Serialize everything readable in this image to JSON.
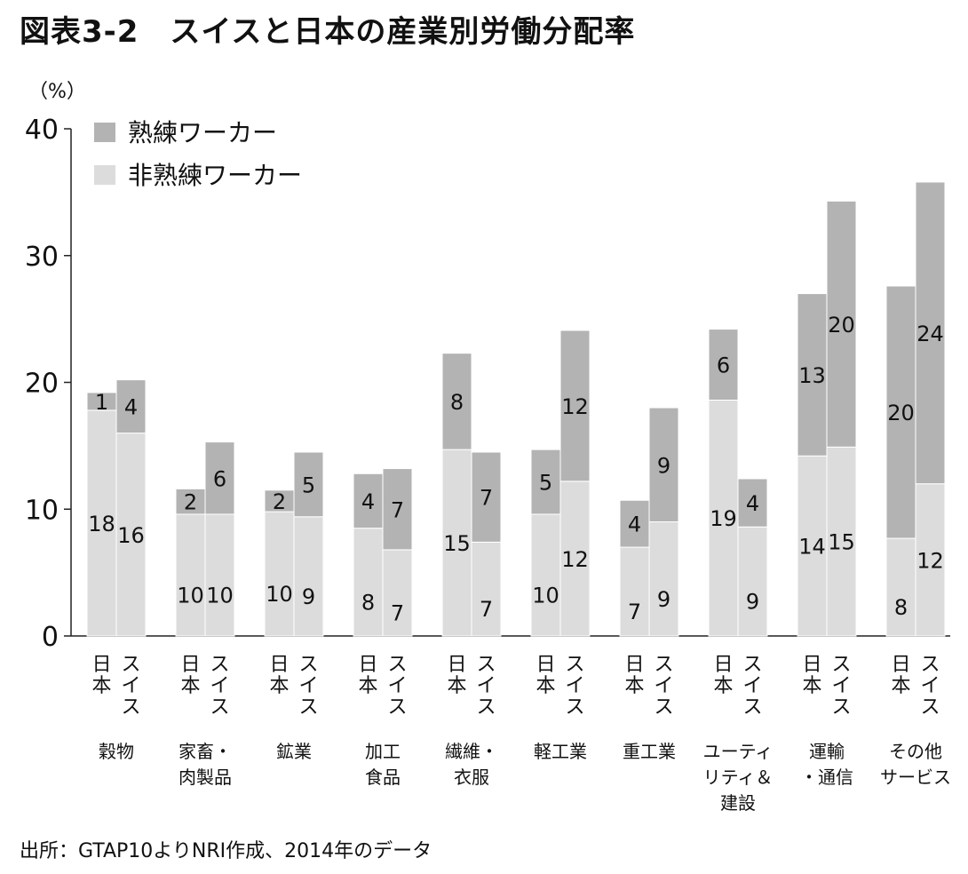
{
  "title": "図表3-2　スイスと日本の産業別労働分配率",
  "source": "出所：GTAP10よりNRI作成、2014年のデータ",
  "colors": {
    "skilled": "#b3b3b3",
    "unskilled": "#dcdcdc",
    "axis": "#222222"
  },
  "chart_data": {
    "type": "bar",
    "stacked": true,
    "ylabel": "（%）",
    "ylim": [
      0,
      40
    ],
    "yticks": [
      0,
      10,
      20,
      30,
      40
    ],
    "legend": {
      "placement": "top-left",
      "entries": [
        "熟練ワーカー",
        "非熟練ワーカー"
      ]
    },
    "bar_labels": {
      "japan": [
        "日",
        "本"
      ],
      "swiss": [
        "ス",
        "イ",
        "ス"
      ]
    },
    "categories": [
      {
        "name": [
          "穀物"
        ],
        "japan": {
          "unskilled": 18,
          "skilled": 1,
          "total": 19.2,
          "unskilled_value": 17.8
        },
        "swiss": {
          "unskilled": 16,
          "skilled": 4,
          "total": 20.2,
          "unskilled_value": 16.0
        }
      },
      {
        "name": [
          "家畜・",
          "肉製品"
        ],
        "japan": {
          "unskilled": 10,
          "skilled": 2,
          "total": 11.6,
          "unskilled_value": 9.6
        },
        "swiss": {
          "unskilled": 10,
          "skilled": 6,
          "total": 15.3,
          "unskilled_value": 9.6
        }
      },
      {
        "name": [
          "鉱業"
        ],
        "japan": {
          "unskilled": 10,
          "skilled": 2,
          "total": 11.5,
          "unskilled_value": 9.8
        },
        "swiss": {
          "unskilled": 9,
          "skilled": 5,
          "total": 14.5,
          "unskilled_value": 9.4
        }
      },
      {
        "name": [
          "加工",
          "食品"
        ],
        "japan": {
          "unskilled": 8,
          "skilled": 4,
          "total": 12.8,
          "unskilled_value": 8.5
        },
        "swiss": {
          "unskilled": 7,
          "skilled": 7,
          "total": 13.2,
          "unskilled_value": 6.8
        }
      },
      {
        "name": [
          "繊維・",
          "衣服"
        ],
        "japan": {
          "unskilled": 15,
          "skilled": 8,
          "total": 22.3,
          "unskilled_value": 14.7
        },
        "swiss": {
          "unskilled": 7,
          "skilled": 7,
          "total": 14.5,
          "unskilled_value": 7.4
        }
      },
      {
        "name": [
          "軽工業"
        ],
        "japan": {
          "unskilled": 10,
          "skilled": 5,
          "total": 14.7,
          "unskilled_value": 9.6
        },
        "swiss": {
          "unskilled": 12,
          "skilled": 12,
          "total": 24.1,
          "unskilled_value": 12.2
        }
      },
      {
        "name": [
          "重工業"
        ],
        "japan": {
          "unskilled": 7,
          "skilled": 4,
          "total": 10.7,
          "unskilled_value": 7.0
        },
        "swiss": {
          "unskilled": 9,
          "skilled": 9,
          "total": 18.0,
          "unskilled_value": 9.0
        }
      },
      {
        "name": [
          "ユーティ",
          "リティ＆",
          "建設"
        ],
        "japan": {
          "unskilled": 19,
          "skilled": 6,
          "total": 24.2,
          "unskilled_value": 18.6
        },
        "swiss": {
          "unskilled": 9,
          "skilled": 4,
          "total": 12.4,
          "unskilled_value": 8.6
        }
      },
      {
        "name": [
          "運輸",
          "・通信"
        ],
        "japan": {
          "unskilled": 14,
          "skilled": 13,
          "total": 27.0,
          "unskilled_value": 14.2
        },
        "swiss": {
          "unskilled": 15,
          "skilled": 20,
          "total": 34.3,
          "unskilled_value": 14.9
        }
      },
      {
        "name": [
          "その他",
          "サービス"
        ],
        "japan": {
          "unskilled": 8,
          "skilled": 20,
          "total": 27.6,
          "unskilled_value": 7.7
        },
        "swiss": {
          "unskilled": 12,
          "skilled": 24,
          "total": 35.8,
          "unskilled_value": 12.0
        }
      }
    ]
  }
}
